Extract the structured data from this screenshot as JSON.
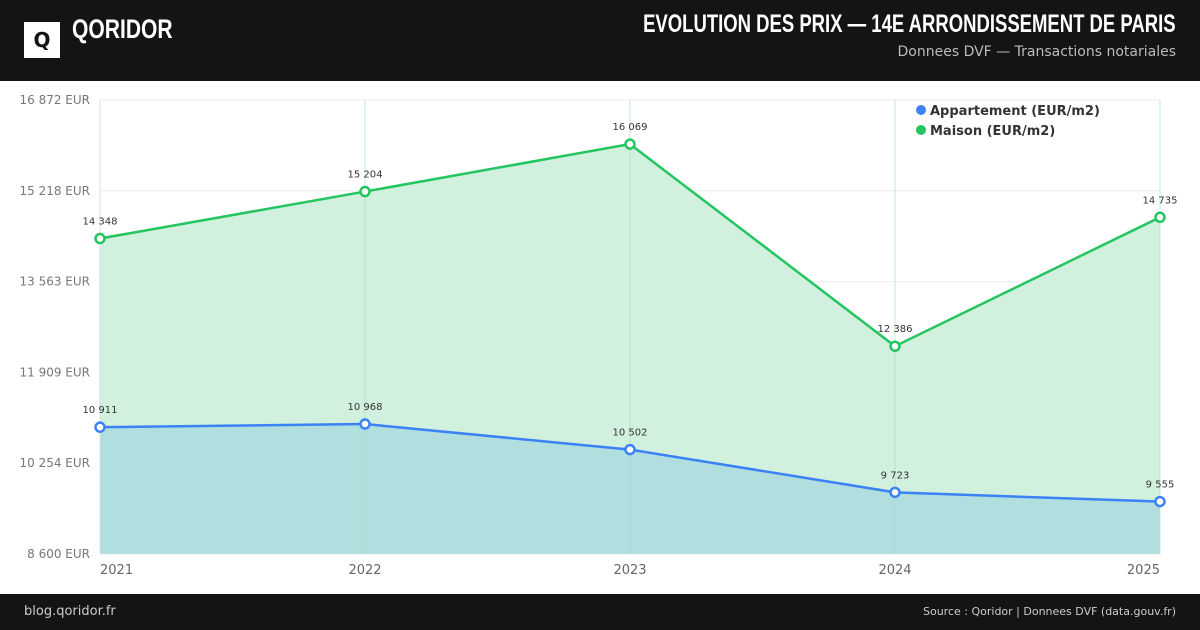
{
  "header": {
    "logo": "Q",
    "brand": "QORIDOR",
    "title": "EVOLUTION DES PRIX — 14E ARRONDISSEMENT DE PARIS",
    "subtitle": "Donnees DVF — Transactions notariales"
  },
  "footer": {
    "left": "blog.qoridor.fr",
    "right": "Source : Qoridor | Donnees DVF (data.gouv.fr)"
  },
  "chart_data": {
    "type": "area",
    "categories": [
      "2021",
      "2022",
      "2023",
      "2024",
      "2025"
    ],
    "ylim": [
      8600,
      16872
    ],
    "yticks": [
      8600,
      10254,
      11909,
      13563,
      15218,
      16872
    ],
    "ytick_labels": [
      "8 600 EUR",
      "10 254 EUR",
      "11 909 EUR",
      "13 563 EUR",
      "15 218 EUR",
      "16 872 EUR"
    ],
    "legend_position": "top-right",
    "series": [
      {
        "name": "Appartement (EUR/m2)",
        "color": "#3b82f6",
        "fill": "#b1dede",
        "values": [
          10911,
          10968,
          10502,
          9723,
          9555
        ],
        "labels": [
          "10 911",
          "10 968",
          "10 502",
          "9 723",
          "9 555"
        ]
      },
      {
        "name": "Maison (EUR/m2)",
        "color": "#22c55e",
        "fill": "#d1f0dd",
        "values": [
          14348,
          15204,
          16069,
          12386,
          14735
        ],
        "labels": [
          "14 348",
          "15 204",
          "16 069",
          "12 386",
          "14 735"
        ]
      }
    ]
  }
}
